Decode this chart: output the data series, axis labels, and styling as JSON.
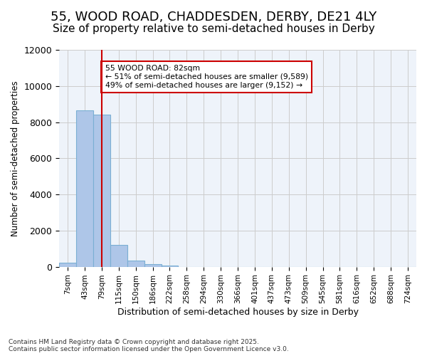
{
  "title_line1": "55, WOOD ROAD, CHADDESDEN, DERBY, DE21 4LY",
  "title_line2": "Size of property relative to semi-detached houses in Derby",
  "xlabel": "Distribution of semi-detached houses by size in Derby",
  "ylabel": "Number of semi-detached properties",
  "footnote": "Contains HM Land Registry data © Crown copyright and database right 2025.\nContains public sector information licensed under the Open Government Licence v3.0.",
  "bin_labels": [
    "7sqm",
    "43sqm",
    "79sqm",
    "115sqm",
    "150sqm",
    "186sqm",
    "222sqm",
    "258sqm",
    "294sqm",
    "330sqm",
    "366sqm",
    "401sqm",
    "437sqm",
    "473sqm",
    "509sqm",
    "545sqm",
    "581sqm",
    "616sqm",
    "652sqm",
    "688sqm",
    "724sqm"
  ],
  "bar_values": [
    220,
    8650,
    8400,
    1200,
    340,
    130,
    50,
    0,
    0,
    0,
    0,
    0,
    0,
    0,
    0,
    0,
    0,
    0,
    0,
    0,
    0
  ],
  "bar_color": "#aec6e8",
  "bar_edge_color": "#7aafd4",
  "property_value": 82,
  "property_bin_index": 2,
  "vline_x": 2,
  "annotation_title": "55 WOOD ROAD: 82sqm",
  "annotation_line2": "← 51% of semi-detached houses are smaller (9,589)",
  "annotation_line3": "49% of semi-detached houses are larger (9,152) →",
  "annotation_box_color": "#ffffff",
  "annotation_box_edge": "#cc0000",
  "vline_color": "#cc0000",
  "ylim": [
    0,
    12000
  ],
  "yticks": [
    0,
    2000,
    4000,
    6000,
    8000,
    10000,
    12000
  ],
  "grid_color": "#cccccc",
  "bg_color": "#eef3fa",
  "title_fontsize": 13,
  "subtitle_fontsize": 11
}
